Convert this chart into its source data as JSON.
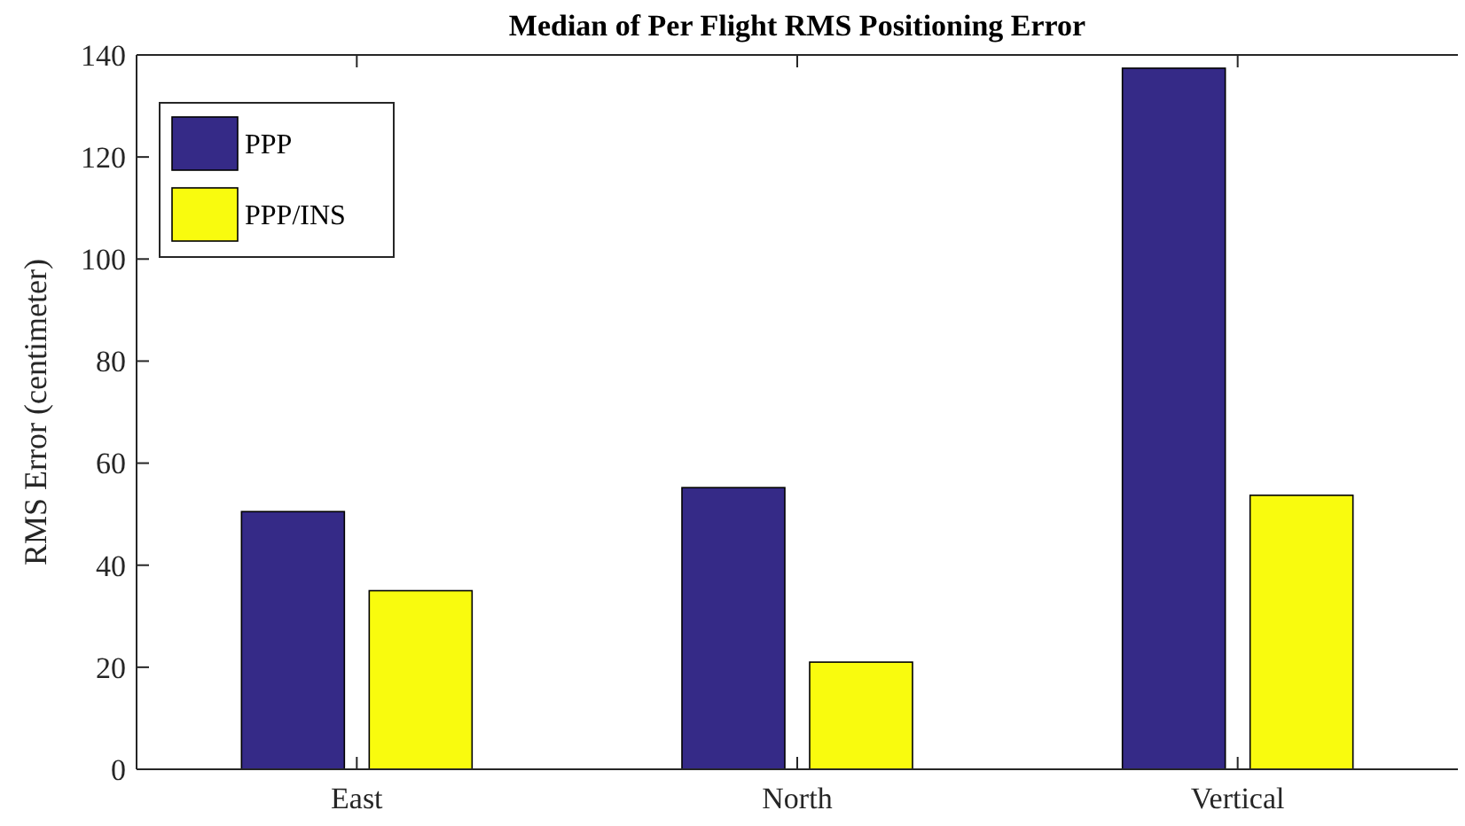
{
  "chart_data": {
    "type": "bar",
    "title": "Median of Per Flight RMS Positioning Error",
    "ylabel": "RMS Error (centimeter)",
    "categories": [
      "East",
      "North",
      "Vertical"
    ],
    "series": [
      {
        "name": "PPP",
        "color": "#352a87",
        "values": [
          50.5,
          55.2,
          137.4
        ]
      },
      {
        "name": "PPP/INS",
        "color": "#f9fb0e",
        "values": [
          35,
          21,
          53.7
        ]
      }
    ],
    "ylim": [
      0,
      140
    ],
    "yticks": [
      0,
      20,
      40,
      60,
      80,
      100,
      120,
      140
    ],
    "grid": false,
    "legend": "top left"
  }
}
